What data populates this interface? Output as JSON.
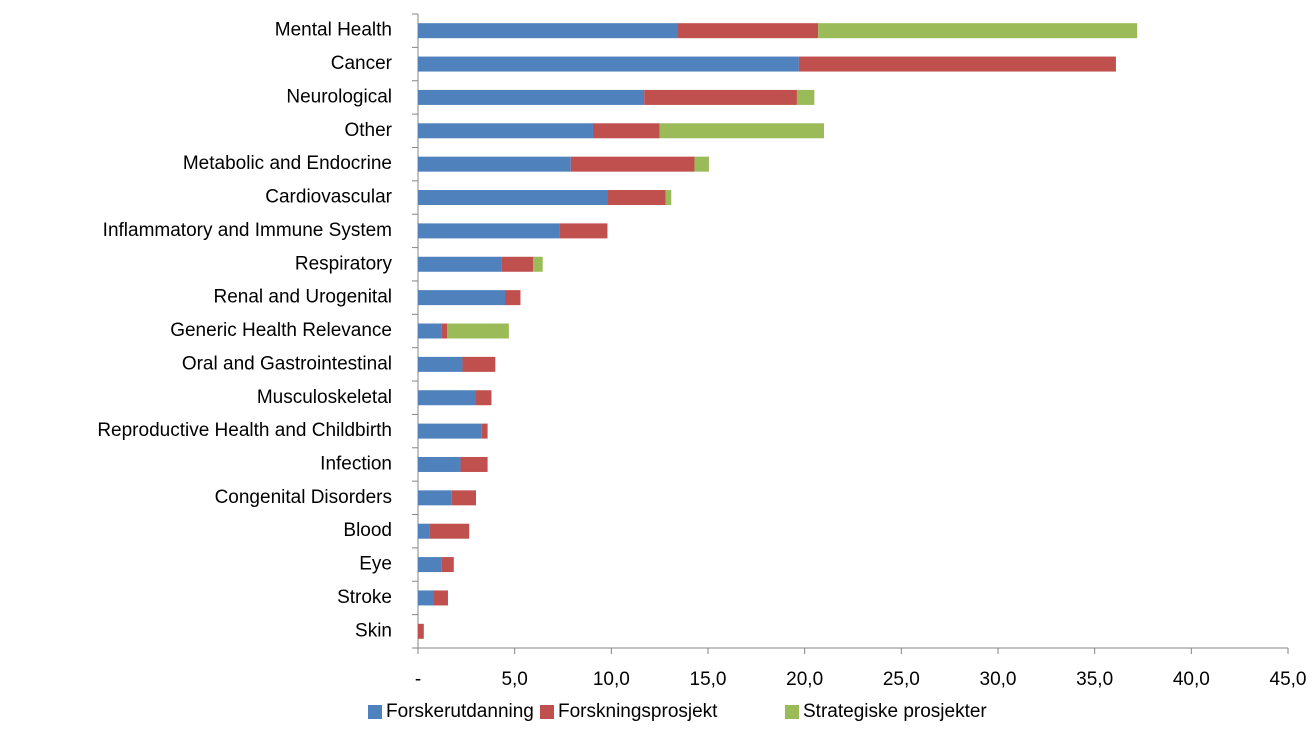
{
  "chart_data": {
    "type": "stacked_barh",
    "categories": [
      "Mental Health",
      "Cancer",
      "Neurological",
      "Other",
      "Metabolic and Endocrine",
      "Cardiovascular",
      "Inflammatory and Immune System",
      "Respiratory",
      "Renal and Urogenital",
      "Generic Health Relevance",
      "Oral and Gastrointestinal",
      "Musculoskeletal",
      "Reproductive Health and Childbirth",
      "Infection",
      "Congenital Disorders",
      "Blood",
      "Eye",
      "Stroke",
      "Skin"
    ],
    "series": [
      {
        "name": "Forskerutdanning",
        "color": "#4f81bd",
        "values": [
          13.4,
          19.7,
          11.7,
          9.05,
          7.9,
          9.8,
          7.3,
          4.3,
          4.5,
          1.2,
          2.3,
          3.0,
          3.3,
          2.2,
          1.75,
          0.6,
          1.2,
          0.8,
          0
        ]
      },
      {
        "name": "Forskningsprosjekt",
        "color": "#c0504d",
        "values": [
          7.3,
          16.4,
          7.9,
          3.45,
          6.4,
          3.0,
          2.5,
          1.65,
          0.8,
          0.3,
          1.7,
          0.8,
          0.3,
          1.4,
          1.25,
          2.05,
          0.65,
          0.75,
          0.3
        ]
      },
      {
        "name": "Strategiske prosjekter",
        "color": "#9bbb59",
        "values": [
          16.5,
          0,
          0.9,
          8.5,
          0.75,
          0.3,
          0,
          0.5,
          0,
          3.2,
          0,
          0,
          0,
          0,
          0,
          0,
          0,
          0,
          0
        ]
      }
    ],
    "xlim": [
      0,
      45
    ],
    "xticks": [
      {
        "value": 0,
        "label": "-"
      },
      {
        "value": 5,
        "label": "5,0"
      },
      {
        "value": 10,
        "label": "10,0"
      },
      {
        "value": 15,
        "label": "15,0"
      },
      {
        "value": 20,
        "label": "20,0"
      },
      {
        "value": 25,
        "label": "25,0"
      },
      {
        "value": 30,
        "label": "30,0"
      },
      {
        "value": 35,
        "label": "35,0"
      },
      {
        "value": 40,
        "label": "40,0"
      },
      {
        "value": 45,
        "label": "45,0"
      }
    ],
    "legend": "bottom"
  }
}
